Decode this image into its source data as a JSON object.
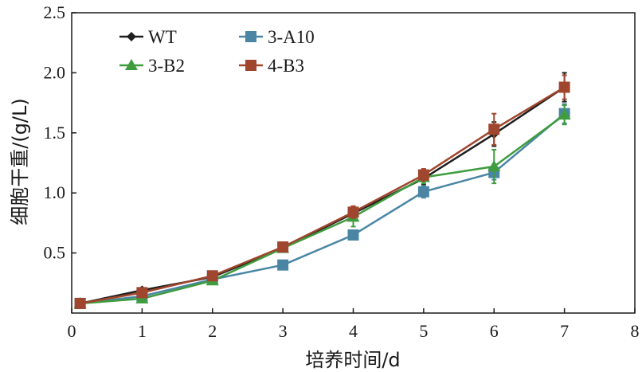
{
  "chart_data": {
    "type": "line",
    "title": "",
    "xlabel": "培养时间/d",
    "ylabel": "细胞干重/(g/L)",
    "xlim": [
      0,
      8
    ],
    "ylim": [
      0,
      2.5
    ],
    "xticks": [
      0,
      1,
      2,
      3,
      4,
      5,
      6,
      7,
      8
    ],
    "yticks": [
      0.5,
      1.0,
      1.5,
      2.0,
      2.5
    ],
    "xtick_labels": [
      "0",
      "1",
      "2",
      "3",
      "4",
      "5",
      "6",
      "7",
      "8"
    ],
    "ytick_labels": [
      "0.5",
      "1.0",
      "1.5",
      "2.0",
      "2.5"
    ],
    "grid": false,
    "legend_position": "top-left",
    "x": [
      0.12,
      1,
      2,
      3,
      4,
      5,
      6,
      7
    ],
    "series": [
      {
        "name": "WT",
        "color": "#1f1f1f",
        "marker": "diamond",
        "values": [
          0.08,
          0.19,
          0.3,
          0.54,
          0.83,
          1.12,
          1.49,
          1.88
        ],
        "errors": [
          0.01,
          0.02,
          0.02,
          0.03,
          0.05,
          0.05,
          0.1,
          0.12
        ]
      },
      {
        "name": "3-A10",
        "color": "#4a86a4",
        "marker": "square",
        "values": [
          0.08,
          0.14,
          0.28,
          0.4,
          0.65,
          1.01,
          1.17,
          1.66
        ],
        "errors": [
          0.01,
          0.02,
          0.02,
          0.03,
          0.03,
          0.05,
          0.06,
          0.08
        ]
      },
      {
        "name": "3-B2",
        "color": "#3f9c3f",
        "marker": "triangle",
        "values": [
          0.08,
          0.12,
          0.27,
          0.54,
          0.8,
          1.13,
          1.22,
          1.65
        ],
        "errors": [
          0.01,
          0.02,
          0.02,
          0.03,
          0.08,
          0.05,
          0.14,
          0.08
        ]
      },
      {
        "name": "4-B3",
        "color": "#a0462e",
        "marker": "square",
        "values": [
          0.08,
          0.17,
          0.31,
          0.55,
          0.84,
          1.15,
          1.53,
          1.88
        ],
        "errors": [
          0.01,
          0.02,
          0.02,
          0.03,
          0.05,
          0.05,
          0.13,
          0.1
        ]
      }
    ]
  }
}
